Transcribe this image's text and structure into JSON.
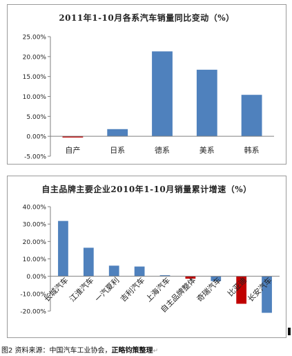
{
  "chart_data": [
    {
      "type": "bar",
      "title": "2011年1-10月各系汽车销量同比变动（%）",
      "categories": [
        "自产",
        "日系",
        "德系",
        "美系",
        "韩系"
      ],
      "values": [
        -0.3,
        1.8,
        21.3,
        16.7,
        10.4
      ],
      "ylim": [
        -5,
        25
      ],
      "yticks": [
        -5,
        0,
        5,
        10,
        15,
        20,
        25
      ],
      "tick_format": "percent2",
      "bar_colors": [
        "#c00000",
        "#4f81bd",
        "#4f81bd",
        "#4f81bd",
        "#4f81bd"
      ],
      "grid": false
    },
    {
      "type": "bar",
      "title": "自主品牌主要企业2010年1-10月销量累计增速（%）",
      "categories": [
        "长城汽车",
        "江淮汽车",
        "一汽夏利",
        "吉利汽车",
        "上海汽车",
        "自主品牌整体",
        "奇瑞汽车",
        "比亚迪",
        "长安汽车"
      ],
      "values": [
        31.8,
        16.4,
        6.1,
        5.6,
        0.6,
        -1.4,
        -2.8,
        -15.8,
        -21.0
      ],
      "ylim": [
        -20,
        40
      ],
      "yticks": [
        -20,
        -10,
        0,
        10,
        20,
        30,
        40
      ],
      "tick_format": "percent2",
      "bar_colors": [
        "#4f81bd",
        "#4f81bd",
        "#4f81bd",
        "#4f81bd",
        "#4f81bd",
        "#c00000",
        "#4f81bd",
        "#c00000",
        "#4f81bd"
      ],
      "grid": false
    }
  ],
  "caption": {
    "prefix": "图2 资料来源：中国汽车工业协会，",
    "bold": "正略钧策整理"
  }
}
